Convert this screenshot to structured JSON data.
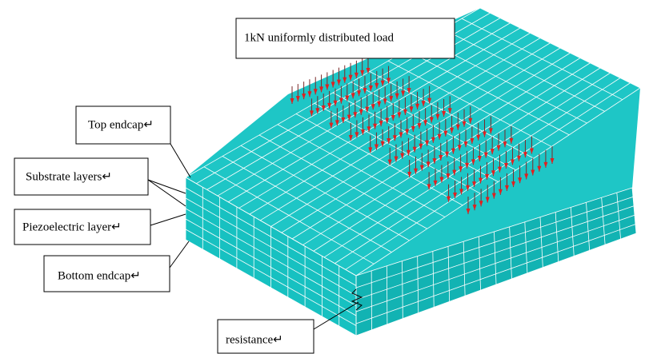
{
  "labels": {
    "load": "1kN uniformly distributed load",
    "top_endcap": "Top endcap↵",
    "substrate": "Substrate layers↵",
    "piezo": "Piezoelectric layer↵",
    "bottom_endcap": "Bottom endcap↵",
    "resistance": "resistance↵"
  }
}
